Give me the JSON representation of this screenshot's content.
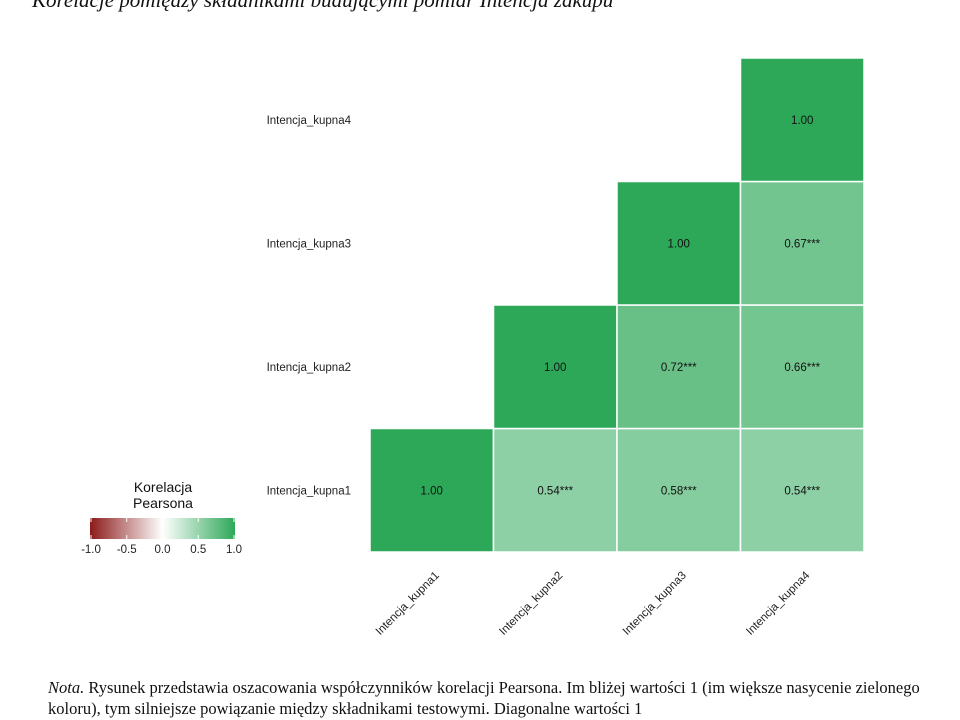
{
  "title": "Korelacje pomiędzy składnikami budującymi pomiar Intencja zakupu",
  "note": {
    "lead": "Nota.",
    "text": "Rysunek przedstawia oszacowania współczynników korelacji Pearsona. Im bliżej wartości 1 (im większe nasycenie zielonego koloru), tym silniejsze powiązanie między składnikami testowymi. Diagonalne wartości 1"
  },
  "colors": {
    "negative": "#8b1a1a",
    "neutral": "#ffffff",
    "positive": "#2da858"
  },
  "chart_data": {
    "type": "heatmap",
    "title": "Korelacje pomiędzy składnikami budującymi pomiar Intencja zakupu",
    "xlabels": [
      "Intencja_kupna1",
      "Intencja_kupna2",
      "Intencja_kupna3",
      "Intencja_kupna4"
    ],
    "ylabels": [
      "Intencja_kupna1",
      "Intencja_kupna2",
      "Intencja_kupna3",
      "Intencja_kupna4"
    ],
    "cells": [
      {
        "x": "Intencja_kupna1",
        "y": "Intencja_kupna1",
        "value": 1.0,
        "label": "1.00"
      },
      {
        "x": "Intencja_kupna2",
        "y": "Intencja_kupna1",
        "value": 0.54,
        "label": "0.54***"
      },
      {
        "x": "Intencja_kupna3",
        "y": "Intencja_kupna1",
        "value": 0.58,
        "label": "0.58***"
      },
      {
        "x": "Intencja_kupna4",
        "y": "Intencja_kupna1",
        "value": 0.54,
        "label": "0.54***"
      },
      {
        "x": "Intencja_kupna2",
        "y": "Intencja_kupna2",
        "value": 1.0,
        "label": "1.00"
      },
      {
        "x": "Intencja_kupna3",
        "y": "Intencja_kupna2",
        "value": 0.72,
        "label": "0.72***"
      },
      {
        "x": "Intencja_kupna4",
        "y": "Intencja_kupna2",
        "value": 0.66,
        "label": "0.66***"
      },
      {
        "x": "Intencja_kupna3",
        "y": "Intencja_kupna3",
        "value": 1.0,
        "label": "1.00"
      },
      {
        "x": "Intencja_kupna4",
        "y": "Intencja_kupna3",
        "value": 0.67,
        "label": "0.67***"
      },
      {
        "x": "Intencja_kupna4",
        "y": "Intencja_kupna4",
        "value": 1.0,
        "label": "1.00"
      }
    ],
    "legend": {
      "title": [
        "Korelacja",
        "Pearsona"
      ],
      "ticks": [
        -1.0,
        -0.5,
        0.0,
        0.5,
        1.0
      ],
      "tick_labels": [
        "-1.0",
        "-0.5",
        "0.0",
        "0.5",
        "1.0"
      ],
      "range": [
        -1,
        1
      ],
      "placement": "left"
    }
  }
}
